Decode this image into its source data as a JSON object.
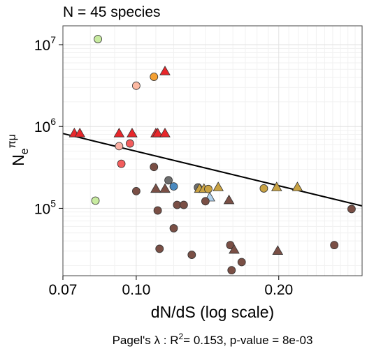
{
  "chart_data": {
    "type": "scatter",
    "title": "N = 45 species",
    "xlabel": "dN/dS (log scale)",
    "ylabel": {
      "main": "N",
      "sub": "e",
      "sup": "πμ"
    },
    "caption": {
      "prefix": "Pagel's λ : R",
      "sup": "2",
      "suffix": "= 0.153, p-value = 8e-03"
    },
    "x_scale": "log",
    "y_scale": "log",
    "xlim": [
      0.07,
      0.3
    ],
    "ylim": [
      15000,
      17000000
    ],
    "grid": true,
    "x_ticks": [
      {
        "v": 0.07,
        "label": "0.07"
      },
      {
        "v": 0.1,
        "label": "0.10"
      },
      {
        "v": 0.2,
        "label": "0.20"
      }
    ],
    "y_ticks": [
      {
        "v": 100000,
        "base": "10",
        "exp": "5"
      },
      {
        "v": 1000000,
        "base": "10",
        "exp": "6"
      },
      {
        "v": 10000000,
        "base": "10",
        "exp": "7"
      }
    ],
    "regression_line": {
      "x": [
        0.07,
        0.3
      ],
      "y": [
        820000,
        107000
      ]
    },
    "colors": {
      "light_green": "#c8eba0",
      "orange": "#f4a032",
      "peach": "#fdb9a2",
      "pink": "#fbb0a4",
      "red": "#e8262a",
      "light_red": "#f25c5c",
      "brown": "#7a4f45",
      "gold": "#c9a242",
      "blue": "#4a8ac0",
      "light_blue": "#aed1ee",
      "gray": "#6e6e6e"
    },
    "points": [
      {
        "x": 0.083,
        "y": 11700000,
        "shape": "circle",
        "color": "light_green"
      },
      {
        "x": 0.082,
        "y": 124000,
        "shape": "circle",
        "color": "light_green"
      },
      {
        "x": 0.1,
        "y": 3150000,
        "shape": "circle",
        "color": "peach"
      },
      {
        "x": 0.109,
        "y": 4050000,
        "shape": "circle",
        "color": "orange"
      },
      {
        "x": 0.115,
        "y": 4700000,
        "shape": "triangle",
        "color": "red"
      },
      {
        "x": 0.074,
        "y": 820000,
        "shape": "triangle",
        "color": "red"
      },
      {
        "x": 0.076,
        "y": 820000,
        "shape": "triangle",
        "color": "red"
      },
      {
        "x": 0.092,
        "y": 820000,
        "shape": "triangle",
        "color": "red"
      },
      {
        "x": 0.098,
        "y": 820000,
        "shape": "triangle",
        "color": "red"
      },
      {
        "x": 0.11,
        "y": 820000,
        "shape": "triangle",
        "color": "red"
      },
      {
        "x": 0.111,
        "y": 820000,
        "shape": "triangle",
        "color": "red"
      },
      {
        "x": 0.115,
        "y": 820000,
        "shape": "triangle",
        "color": "red"
      },
      {
        "x": 0.092,
        "y": 575000,
        "shape": "circle",
        "color": "pink"
      },
      {
        "x": 0.097,
        "y": 620000,
        "shape": "circle",
        "color": "light_red"
      },
      {
        "x": 0.093,
        "y": 350000,
        "shape": "circle",
        "color": "light_red"
      },
      {
        "x": 0.109,
        "y": 320000,
        "shape": "circle",
        "color": "brown"
      },
      {
        "x": 0.117,
        "y": 220000,
        "shape": "circle",
        "color": "gray"
      },
      {
        "x": 0.12,
        "y": 185000,
        "shape": "circle",
        "color": "blue"
      },
      {
        "x": 0.1,
        "y": 162000,
        "shape": "circle",
        "color": "brown"
      },
      {
        "x": 0.11,
        "y": 172000,
        "shape": "triangle",
        "color": "brown"
      },
      {
        "x": 0.115,
        "y": 172000,
        "shape": "triangle",
        "color": "brown"
      },
      {
        "x": 0.135,
        "y": 180000,
        "shape": "circle",
        "color": "gray"
      },
      {
        "x": 0.136,
        "y": 172000,
        "shape": "triangle",
        "color": "gold"
      },
      {
        "x": 0.139,
        "y": 172000,
        "shape": "triangle",
        "color": "gold"
      },
      {
        "x": 0.142,
        "y": 172000,
        "shape": "circle",
        "color": "gold"
      },
      {
        "x": 0.149,
        "y": 180000,
        "shape": "triangle",
        "color": "gold"
      },
      {
        "x": 0.143,
        "y": 135000,
        "shape": "triangle",
        "color": "light_blue"
      },
      {
        "x": 0.14,
        "y": 122000,
        "shape": "circle",
        "color": "brown"
      },
      {
        "x": 0.157,
        "y": 125000,
        "shape": "triangle",
        "color": "brown"
      },
      {
        "x": 0.122,
        "y": 110000,
        "shape": "circle",
        "color": "brown"
      },
      {
        "x": 0.126,
        "y": 110000,
        "shape": "circle",
        "color": "brown"
      },
      {
        "x": 0.111,
        "y": 94000,
        "shape": "circle",
        "color": "brown"
      },
      {
        "x": 0.12,
        "y": 57000,
        "shape": "circle",
        "color": "brown"
      },
      {
        "x": 0.112,
        "y": 32000,
        "shape": "circle",
        "color": "brown"
      },
      {
        "x": 0.131,
        "y": 27000,
        "shape": "circle",
        "color": "brown"
      },
      {
        "x": 0.158,
        "y": 35500,
        "shape": "circle",
        "color": "brown"
      },
      {
        "x": 0.161,
        "y": 31000,
        "shape": "triangle",
        "color": "brown"
      },
      {
        "x": 0.159,
        "y": 17500,
        "shape": "circle",
        "color": "brown"
      },
      {
        "x": 0.167,
        "y": 22000,
        "shape": "circle",
        "color": "brown"
      },
      {
        "x": 0.186,
        "y": 175000,
        "shape": "circle",
        "color": "gold"
      },
      {
        "x": 0.198,
        "y": 180000,
        "shape": "triangle",
        "color": "gold"
      },
      {
        "x": 0.219,
        "y": 180000,
        "shape": "triangle",
        "color": "gold"
      },
      {
        "x": 0.199,
        "y": 30000,
        "shape": "triangle",
        "color": "brown"
      },
      {
        "x": 0.262,
        "y": 35500,
        "shape": "circle",
        "color": "brown"
      },
      {
        "x": 0.285,
        "y": 98000,
        "shape": "circle",
        "color": "brown"
      }
    ]
  }
}
